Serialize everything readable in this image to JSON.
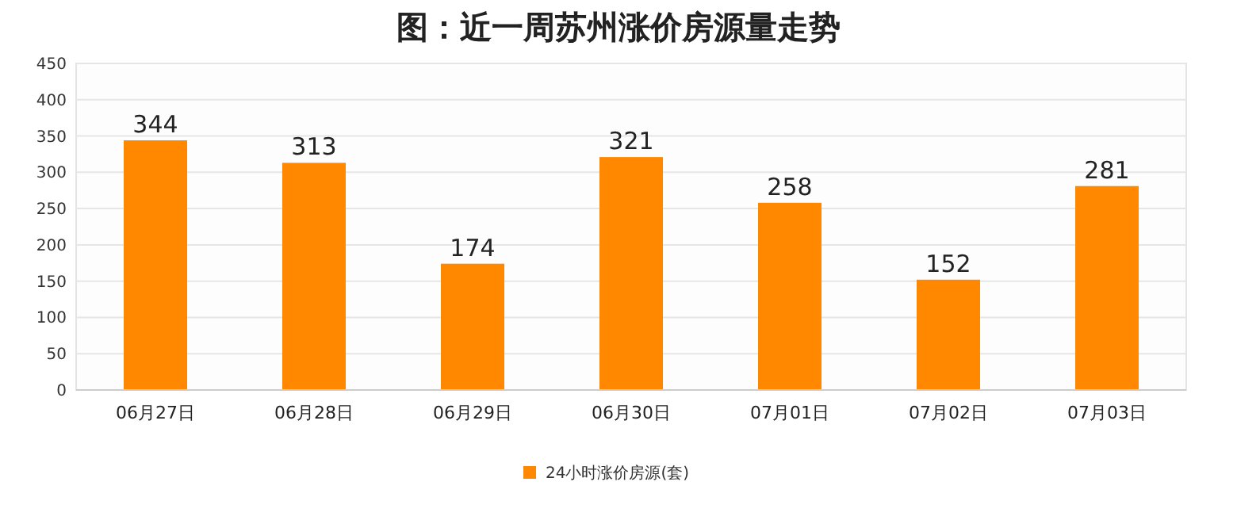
{
  "chart_data": {
    "type": "bar",
    "title": "图：近一周苏州涨价房源量走势",
    "categories": [
      "06月27日",
      "06月28日",
      "06月29日",
      "06月30日",
      "07月01日",
      "07月02日",
      "07月03日"
    ],
    "series": [
      {
        "name": "24小时涨价房源(套)",
        "color": "#ff8800",
        "values": [
          344,
          313,
          174,
          321,
          258,
          152,
          281
        ]
      }
    ],
    "ylim": [
      0,
      450
    ],
    "yticks": [
      0,
      50,
      100,
      150,
      200,
      250,
      300,
      350,
      400,
      450
    ],
    "grid": "y",
    "legend": "bottom",
    "data_labels": true
  }
}
